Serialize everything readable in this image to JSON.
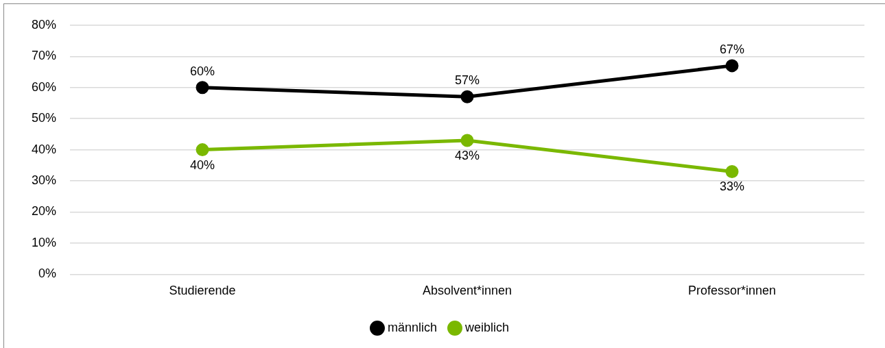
{
  "chart_data": {
    "type": "line",
    "categories": [
      "Studierende",
      "Absolvent*innen",
      "Professor*innen"
    ],
    "series": [
      {
        "name": "männlich",
        "color": "#000000",
        "values": [
          60,
          57,
          67
        ],
        "value_labels": [
          "60%",
          "57%",
          "67%"
        ]
      },
      {
        "name": "weiblich",
        "color": "#7ab800",
        "values": [
          40,
          43,
          33
        ],
        "value_labels": [
          "40%",
          "43%",
          "33%"
        ]
      }
    ],
    "ylim": [
      0,
      80
    ],
    "yticks": [
      {
        "value": 0,
        "label": "0%"
      },
      {
        "value": 10,
        "label": "10%"
      },
      {
        "value": 20,
        "label": "20%"
      },
      {
        "value": 30,
        "label": "30%"
      },
      {
        "value": 40,
        "label": "40%"
      },
      {
        "value": 50,
        "label": "50%"
      },
      {
        "value": 60,
        "label": "60%"
      },
      {
        "value": 70,
        "label": "70%"
      },
      {
        "value": 80,
        "label": "80%"
      }
    ],
    "grid": "y",
    "legend": "bottom",
    "marker": "circle",
    "line_style": "solid"
  }
}
